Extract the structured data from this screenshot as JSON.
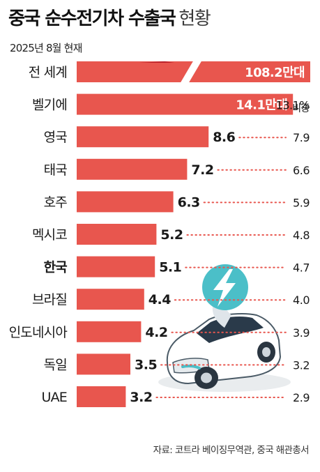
{
  "title": {
    "main": "중국 순수전기차 수출국",
    "sub": "현황"
  },
  "subtitle": "2025년 8월 현재",
  "source": "자료: 코트라 베이징무역관, 중국 해관총서",
  "share_label": "비중",
  "colors": {
    "bar": "#e8564e",
    "bar_dark": "#b8202a",
    "dots": "#e8564e",
    "icon_teal": "#4bbfc8",
    "text": "#1a1a1a"
  },
  "chart_data": {
    "type": "bar",
    "orientation": "horizontal",
    "unit": "만대",
    "categories": [
      "전 세계",
      "벨기에",
      "영국",
      "태국",
      "호주",
      "멕시코",
      "한국",
      "브라질",
      "인도네시아",
      "독일",
      "UAE"
    ],
    "values": [
      108.2,
      14.1,
      8.6,
      7.2,
      6.3,
      5.2,
      5.1,
      4.4,
      4.2,
      3.5,
      3.2
    ],
    "value_labels": [
      "108.2만대",
      "14.1만대",
      "8.6",
      "7.2",
      "6.3",
      "5.2",
      "5.1",
      "4.4",
      "4.2",
      "3.5",
      "3.2"
    ],
    "share_percent": [
      null,
      13.1,
      7.9,
      6.6,
      5.9,
      4.8,
      4.7,
      4.0,
      3.9,
      3.2,
      2.9
    ],
    "share_labels": [
      "",
      "13.1%",
      "7.9",
      "6.6",
      "5.9",
      "4.8",
      "4.7",
      "4.0",
      "3.9",
      "3.2",
      "2.9"
    ],
    "highlight_category": "한국",
    "axis_break": true
  },
  "illustration": {
    "icon": "electric-car-with-lightning-icon"
  }
}
